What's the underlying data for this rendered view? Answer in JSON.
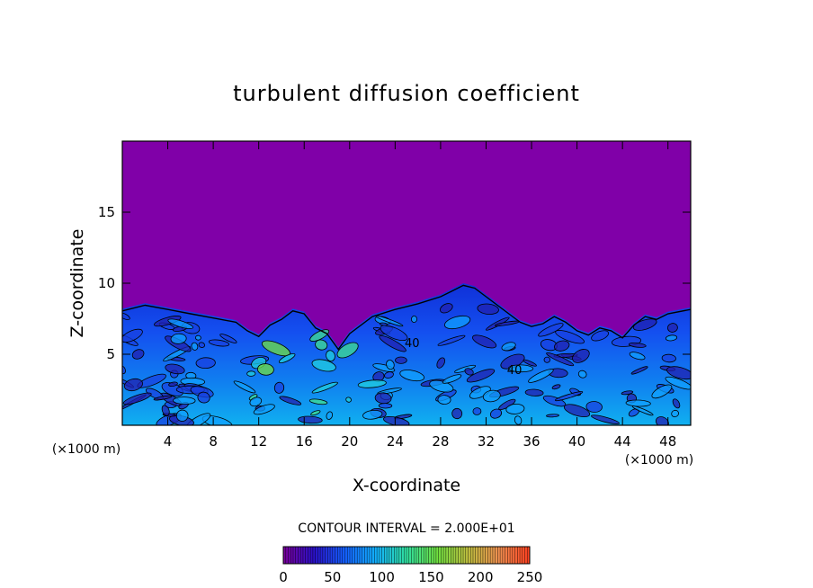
{
  "chart_data": {
    "type": "heatmap",
    "title": "turbulent diffusion coefficient",
    "xlabel": "X-coordinate",
    "ylabel": "Z-coordinate",
    "x_unit": "(×1000 m)",
    "y_unit": "(×1000 m)",
    "xlim": [
      0,
      50
    ],
    "ylim": [
      0,
      20
    ],
    "x_ticks": [
      4,
      8,
      12,
      16,
      20,
      24,
      28,
      32,
      36,
      40,
      44,
      48
    ],
    "y_ticks": [
      5,
      10,
      15
    ],
    "contour_interval_text": "CONTOUR INTERVAL = 2.000E+01",
    "contour_interval": 20,
    "contour_labels": [
      {
        "x": 25.5,
        "y": 5.5,
        "text": "40"
      },
      {
        "x": 34.5,
        "y": 3.6,
        "text": "40"
      }
    ],
    "colorbar": {
      "min": 0,
      "max": 250,
      "tick_values": [
        0,
        50,
        100,
        150,
        200,
        250
      ],
      "colors": [
        "#7a009a",
        "#2a10c8",
        "#1460ff",
        "#12b0ff",
        "#30e0a0",
        "#70e040",
        "#c0c040",
        "#f09050",
        "#ff4020"
      ]
    },
    "background_color": "#8000a8",
    "turbulent_layer_top": [
      [
        0,
        8.2
      ],
      [
        2,
        8.6
      ],
      [
        4,
        8.3
      ],
      [
        6,
        8.0
      ],
      [
        8,
        7.7
      ],
      [
        10,
        7.4
      ],
      [
        11,
        6.8
      ],
      [
        12,
        6.4
      ],
      [
        13,
        7.2
      ],
      [
        14,
        7.6
      ],
      [
        15,
        8.2
      ],
      [
        16,
        8.0
      ],
      [
        17,
        7.0
      ],
      [
        18,
        6.6
      ],
      [
        19,
        5.5
      ],
      [
        20,
        6.6
      ],
      [
        22,
        7.8
      ],
      [
        24,
        8.3
      ],
      [
        26,
        8.7
      ],
      [
        28,
        9.2
      ],
      [
        29,
        9.6
      ],
      [
        30,
        10.0
      ],
      [
        31,
        9.8
      ],
      [
        32,
        9.2
      ],
      [
        33,
        8.6
      ],
      [
        34,
        8.0
      ],
      [
        35,
        7.4
      ],
      [
        36,
        7.1
      ],
      [
        37,
        7.3
      ],
      [
        38,
        7.8
      ],
      [
        39,
        7.4
      ],
      [
        40,
        6.8
      ],
      [
        41,
        6.5
      ],
      [
        42,
        7.0
      ],
      [
        43,
        6.8
      ],
      [
        44,
        6.3
      ],
      [
        45,
        7.2
      ],
      [
        46,
        7.8
      ],
      [
        47,
        7.6
      ],
      [
        48,
        8.0
      ],
      [
        50,
        8.3
      ]
    ],
    "key_values": {
      "free_atmosphere_value": 0,
      "turbulent_layer_value_typical": 40,
      "turbulent_layer_value_max": 150
    }
  }
}
